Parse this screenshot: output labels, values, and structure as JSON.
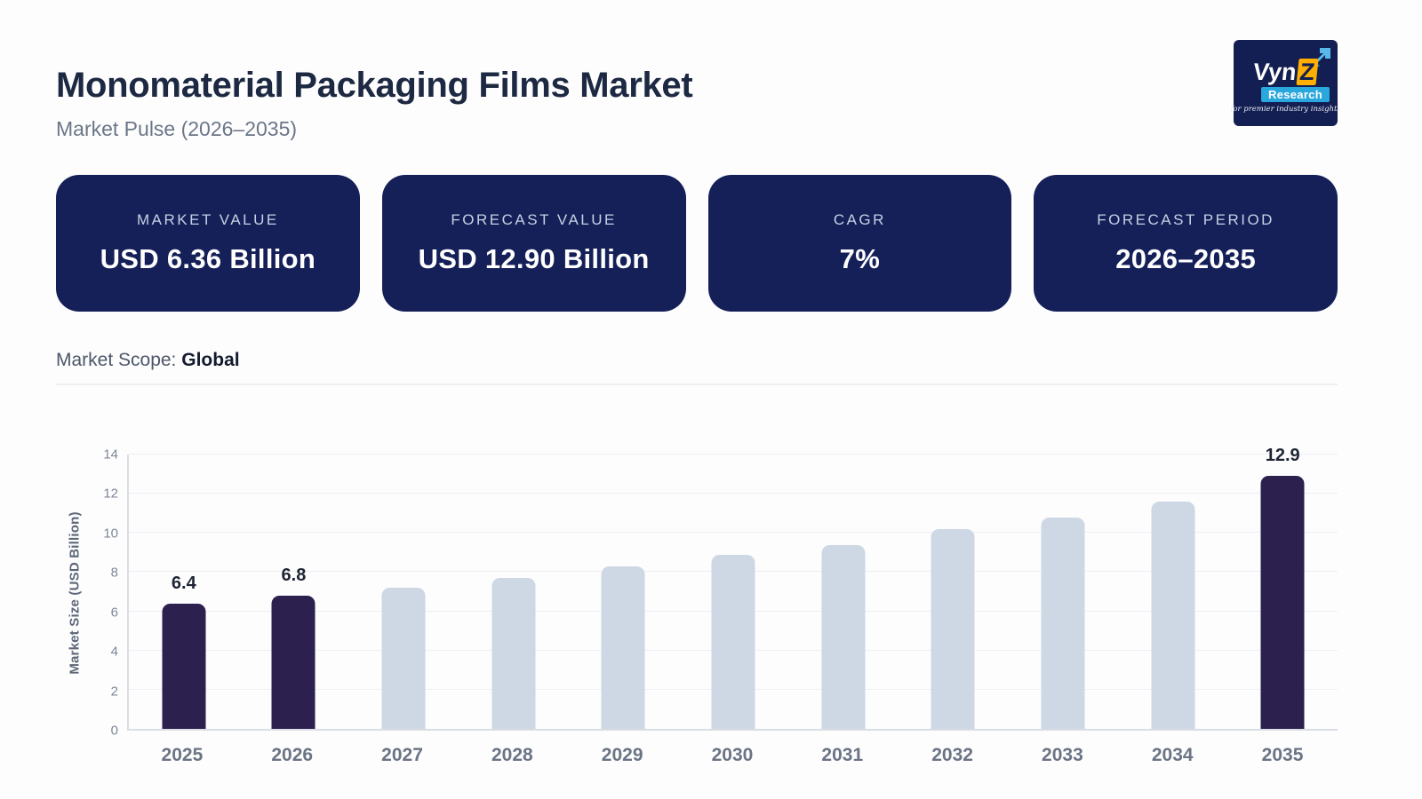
{
  "header": {
    "title": "Monomaterial Packaging Films Market",
    "subtitle": "Market Pulse (2026–2035)"
  },
  "logo": {
    "brand_prefix": "Vyn",
    "brand_z": "Z",
    "sub": "Research",
    "tagline": "for premier industry insights",
    "colors": {
      "bg": "#131e52",
      "accent_blue": "#2aa7dd",
      "z_yellow": "#ffaf00"
    }
  },
  "stats": {
    "cards": [
      {
        "label": "MARKET VALUE",
        "value": "USD 6.36 Billion"
      },
      {
        "label": "FORECAST VALUE",
        "value": "USD 12.90 Billion"
      },
      {
        "label": "CAGR",
        "value": "7%"
      },
      {
        "label": "FORECAST PERIOD",
        "value": "2026–2035"
      }
    ],
    "card_bg": "#152058"
  },
  "scope": {
    "label": "Market Scope:",
    "value": "Global"
  },
  "chart_data": {
    "type": "bar",
    "categories": [
      "2025",
      "2026",
      "2027",
      "2028",
      "2029",
      "2030",
      "2031",
      "2032",
      "2033",
      "2034",
      "2035"
    ],
    "values": [
      6.4,
      6.8,
      7.2,
      7.7,
      8.3,
      8.9,
      9.4,
      10.2,
      10.8,
      11.6,
      12.9
    ],
    "data_labels": {
      "0": "6.4",
      "1": "6.8",
      "10": "12.9"
    },
    "highlight_indices": [
      0,
      1,
      10
    ],
    "xlabel": "",
    "ylabel": "Market Size (USD Billion)",
    "ylim": [
      0,
      14
    ],
    "yticks": [
      0,
      2,
      4,
      6,
      8,
      10,
      12,
      14
    ],
    "grid": true,
    "legend": false,
    "colors": {
      "bar": "#cdd8e4",
      "highlight": "#2c204e",
      "value_label": "#1e2433"
    }
  }
}
